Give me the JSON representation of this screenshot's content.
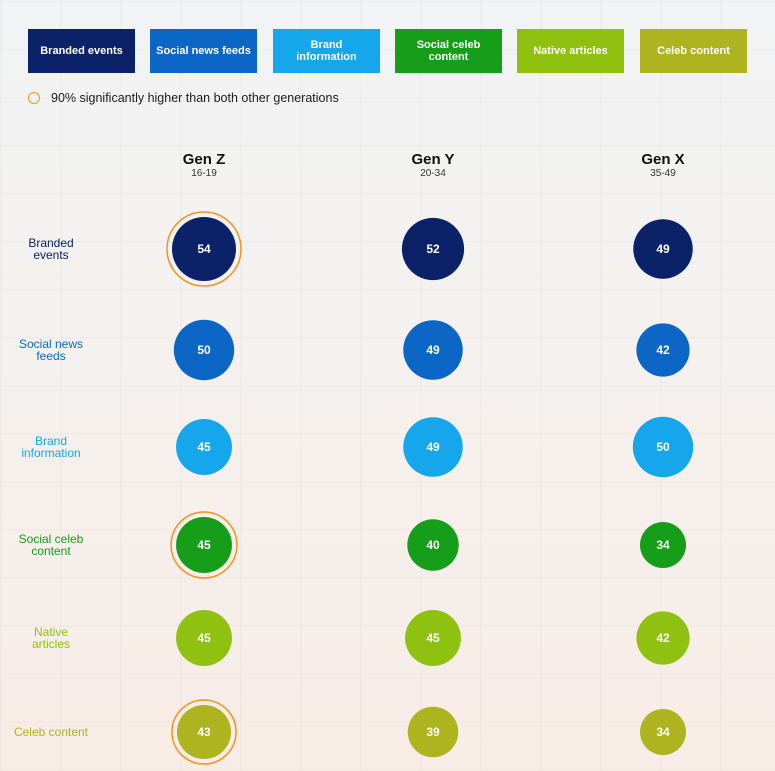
{
  "legend": [
    {
      "key": "branded_events",
      "label": "Branded events",
      "color": "#0c2268"
    },
    {
      "key": "social_news_feeds",
      "label": "Social news feeds",
      "color": "#0c66c6"
    },
    {
      "key": "brand_information",
      "label": "Brand information",
      "color": "#16a6eb"
    },
    {
      "key": "social_celeb_content",
      "label": "Social celeb content",
      "color": "#169e1a"
    },
    {
      "key": "native_articles",
      "label": "Native articles",
      "color": "#8fc110"
    },
    {
      "key": "celeb_content",
      "label": "Celeb content",
      "color": "#aeb420"
    }
  ],
  "note": {
    "text": "90% significantly higher than both other generations",
    "ring_color": "#f0941e"
  },
  "chart_data": {
    "type": "table",
    "columns": [
      {
        "name": "Gen Z",
        "age": "16-19"
      },
      {
        "name": "Gen Y",
        "age": "20-34"
      },
      {
        "name": "Gen X",
        "age": "35-49"
      }
    ],
    "rows": [
      {
        "label": "Branded events",
        "color": "#0c2268",
        "values": [
          54,
          52,
          49
        ],
        "highlight": [
          true,
          false,
          false
        ]
      },
      {
        "label": "Social news feeds",
        "color": "#0c66c6",
        "values": [
          50,
          49,
          42
        ],
        "highlight": [
          false,
          false,
          false
        ]
      },
      {
        "label": "Brand information",
        "color": "#16a6eb",
        "values": [
          45,
          49,
          50
        ],
        "highlight": [
          false,
          false,
          false
        ]
      },
      {
        "label": "Social celeb content",
        "color": "#169e1a",
        "values": [
          45,
          40,
          34
        ],
        "highlight": [
          true,
          false,
          false
        ]
      },
      {
        "label": "Native articles",
        "color": "#8fc110",
        "values": [
          45,
          45,
          42
        ],
        "highlight": [
          false,
          false,
          false
        ]
      },
      {
        "label": "Celeb content",
        "color": "#aeb420",
        "values": [
          43,
          39,
          34
        ],
        "highlight": [
          true,
          false,
          false
        ]
      }
    ],
    "bubble_size_encodes": "value",
    "highlight_ring_color": "#f0941e"
  }
}
